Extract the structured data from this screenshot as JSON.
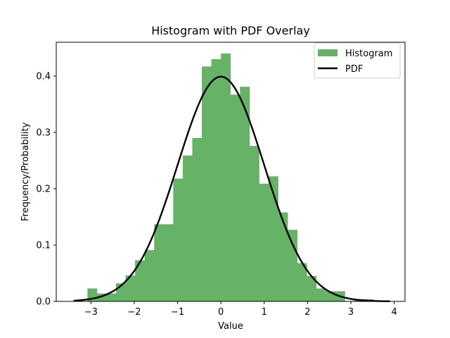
{
  "chart_data": {
    "type": "bar",
    "title": "Histogram with PDF Overlay",
    "xlabel": "Value",
    "ylabel": "Frequency/Probability",
    "xlim": [
      -3.8,
      4.25
    ],
    "ylim": [
      0,
      0.46
    ],
    "xticks": [
      -3,
      -2,
      -1,
      0,
      1,
      2,
      3,
      4
    ],
    "xtick_labels": [
      "−3",
      "−2",
      "−1",
      "0",
      "1",
      "2",
      "3",
      "4"
    ],
    "yticks": [
      0.0,
      0.1,
      0.2,
      0.3,
      0.4
    ],
    "ytick_labels": [
      "0.0",
      "0.1",
      "0.2",
      "0.3",
      "0.4"
    ],
    "grid": false,
    "legend_position": "top-right",
    "series": [
      {
        "name": "Histogram",
        "type": "histogram",
        "color": "#66b266",
        "bins": [
          {
            "x0": -3.3,
            "x1": -3.08,
            "value": 0.0
          },
          {
            "x0": -3.08,
            "x1": -2.86,
            "value": 0.023
          },
          {
            "x0": -2.86,
            "x1": -2.64,
            "value": 0.014
          },
          {
            "x0": -2.64,
            "x1": -2.42,
            "value": 0.014
          },
          {
            "x0": -2.42,
            "x1": -2.2,
            "value": 0.032
          },
          {
            "x0": -2.2,
            "x1": -1.98,
            "value": 0.046
          },
          {
            "x0": -1.98,
            "x1": -1.76,
            "value": 0.073
          },
          {
            "x0": -1.76,
            "x1": -1.54,
            "value": 0.091
          },
          {
            "x0": -1.54,
            "x1": -1.32,
            "value": 0.137
          },
          {
            "x0": -1.32,
            "x1": -1.1,
            "value": 0.137
          },
          {
            "x0": -1.1,
            "x1": -0.88,
            "value": 0.218
          },
          {
            "x0": -0.88,
            "x1": -0.66,
            "value": 0.259
          },
          {
            "x0": -0.66,
            "x1": -0.44,
            "value": 0.29
          },
          {
            "x0": -0.44,
            "x1": -0.22,
            "value": 0.417
          },
          {
            "x0": -0.22,
            "x1": 0.0,
            "value": 0.43
          },
          {
            "x0": 0.0,
            "x1": 0.22,
            "value": 0.44
          },
          {
            "x0": 0.22,
            "x1": 0.44,
            "value": 0.367
          },
          {
            "x0": 0.44,
            "x1": 0.66,
            "value": 0.381
          },
          {
            "x0": 0.66,
            "x1": 0.88,
            "value": 0.276
          },
          {
            "x0": 0.88,
            "x1": 1.1,
            "value": 0.209
          },
          {
            "x0": 1.1,
            "x1": 1.32,
            "value": 0.222
          },
          {
            "x0": 1.32,
            "x1": 1.54,
            "value": 0.158
          },
          {
            "x0": 1.54,
            "x1": 1.76,
            "value": 0.127
          },
          {
            "x0": 1.76,
            "x1": 1.98,
            "value": 0.068
          },
          {
            "x0": 1.98,
            "x1": 2.2,
            "value": 0.045
          },
          {
            "x0": 2.2,
            "x1": 2.42,
            "value": 0.023
          },
          {
            "x0": 2.42,
            "x1": 2.64,
            "value": 0.018
          },
          {
            "x0": 2.64,
            "x1": 2.86,
            "value": 0.018
          },
          {
            "x0": 2.86,
            "x1": 3.08,
            "value": 0.0
          },
          {
            "x0": 3.08,
            "x1": 3.3,
            "value": 0.004
          },
          {
            "x0": 3.3,
            "x1": 3.52,
            "value": 0.004
          }
        ]
      },
      {
        "name": "PDF",
        "type": "line",
        "color": "#000000",
        "function": "standard_normal_pdf",
        "x_range": [
          -3.4,
          3.9
        ]
      }
    ]
  }
}
